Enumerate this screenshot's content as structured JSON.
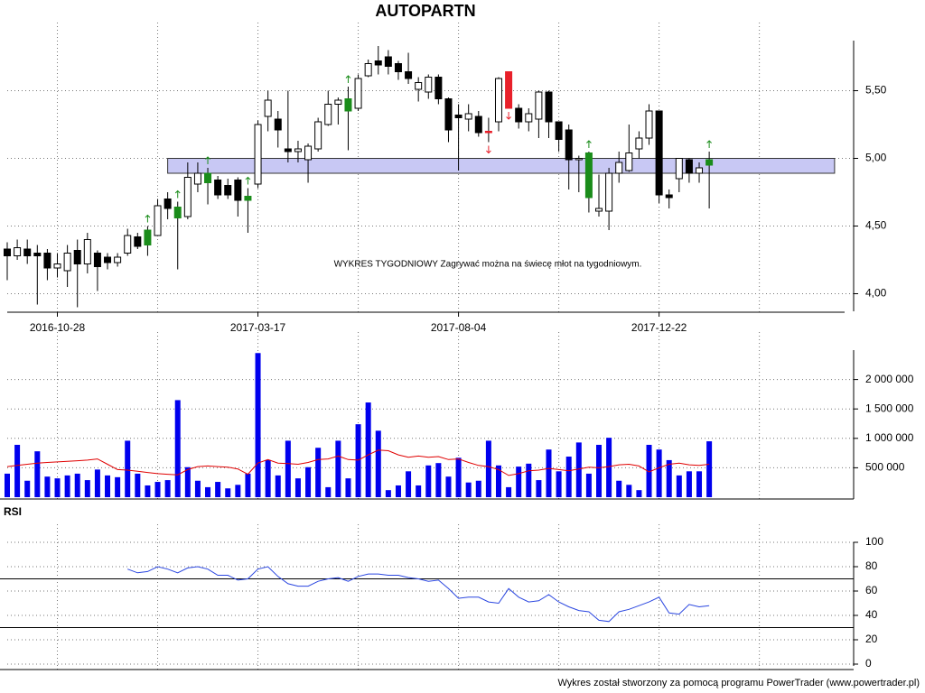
{
  "footer": "Wykres został stworzony za pomocą programu PowerTrader (www.powertrader.pl)",
  "chart_data": [
    {
      "type": "candlestick",
      "title": "AUTOPARTN",
      "annotation": "WYKRES TYGODNIOWY Zagrywać można na świecę młot na tygodniowym.",
      "categories": [
        null,
        null,
        null,
        null,
        null,
        "2016-10-28",
        null,
        null,
        null,
        null,
        null,
        null,
        null,
        null,
        null,
        null,
        null,
        null,
        null,
        null,
        null,
        null,
        null,
        null,
        null,
        "2017-03-17",
        null,
        null,
        null,
        null,
        null,
        null,
        null,
        null,
        null,
        null,
        null,
        null,
        null,
        null,
        null,
        null,
        null,
        null,
        null,
        "2017-08-04",
        null,
        null,
        null,
        null,
        null,
        null,
        null,
        null,
        null,
        null,
        null,
        null,
        null,
        null,
        null,
        null,
        null,
        null,
        null,
        "2017-12-22",
        null,
        null,
        null,
        null,
        null
      ],
      "open": [
        4.33,
        4.28,
        4.33,
        4.3,
        4.3,
        4.19,
        4.17,
        4.32,
        4.22,
        4.3,
        4.27,
        4.23,
        4.3,
        4.42,
        4.36,
        4.43,
        4.7,
        4.56,
        4.57,
        4.81,
        4.82,
        4.84,
        4.8,
        4.84,
        4.69,
        4.81,
        5.31,
        5.29,
        5.07,
        5.05,
        4.99,
        5.07,
        5.25,
        5.4,
        5.35,
        5.37,
        5.61,
        5.72,
        5.75,
        5.7,
        5.64,
        5.51,
        5.49,
        5.6,
        5.44,
        5.32,
        5.29,
        5.31,
        5.19,
        5.27,
        5.64,
        5.37,
        5.27,
        5.29,
        5.49,
        5.27,
        5.21,
        4.99,
        4.71,
        4.61,
        4.61,
        4.89,
        4.91,
        5.07,
        5.15,
        5.35,
        4.73,
        4.85,
        4.99,
        4.89,
        4.95
      ],
      "high": [
        4.38,
        4.4,
        4.4,
        4.36,
        4.33,
        4.3,
        4.36,
        4.4,
        4.45,
        4.32,
        4.3,
        4.3,
        4.48,
        4.45,
        4.5,
        4.7,
        4.75,
        4.68,
        4.97,
        4.97,
        4.93,
        4.87,
        4.85,
        4.86,
        4.78,
        5.28,
        5.5,
        5.35,
        5.5,
        5.13,
        5.11,
        5.3,
        5.5,
        5.45,
        5.53,
        5.62,
        5.73,
        5.83,
        5.8,
        5.72,
        5.78,
        5.6,
        5.62,
        5.62,
        5.45,
        5.4,
        5.4,
        5.35,
        5.3,
        5.6,
        5.64,
        5.4,
        5.37,
        5.5,
        5.5,
        5.27,
        5.25,
        5.02,
        5.05,
        4.88,
        4.93,
        5.05,
        5.25,
        5.2,
        5.4,
        5.35,
        4.77,
        5.0,
        5.0,
        4.97,
        5.05
      ],
      "low": [
        4.1,
        4.25,
        4.22,
        3.92,
        4.1,
        4.12,
        4.05,
        3.9,
        4.15,
        4.02,
        4.18,
        4.2,
        4.28,
        4.33,
        4.28,
        4.43,
        4.55,
        4.18,
        4.55,
        4.75,
        4.66,
        4.7,
        4.7,
        4.57,
        4.45,
        4.78,
        5.2,
        5.08,
        4.97,
        4.97,
        4.82,
        5.05,
        5.24,
        5.25,
        5.06,
        5.35,
        5.6,
        5.62,
        5.62,
        5.58,
        5.55,
        5.42,
        5.44,
        5.4,
        5.12,
        4.91,
        5.2,
        5.16,
        5.12,
        5.2,
        5.37,
        5.22,
        5.2,
        5.15,
        5.15,
        5.05,
        4.77,
        4.75,
        4.6,
        4.57,
        4.47,
        4.82,
        4.9,
        5.0,
        5.1,
        4.67,
        4.63,
        4.75,
        4.82,
        4.82,
        4.63
      ],
      "close": [
        4.28,
        4.34,
        4.28,
        4.28,
        4.19,
        4.22,
        4.3,
        4.22,
        4.4,
        4.2,
        4.23,
        4.27,
        4.43,
        4.35,
        4.47,
        4.65,
        4.63,
        4.64,
        4.86,
        4.89,
        4.89,
        4.73,
        4.73,
        4.69,
        4.72,
        5.25,
        5.43,
        5.21,
        5.05,
        5.07,
        5.09,
        5.27,
        5.4,
        5.43,
        5.44,
        5.59,
        5.7,
        5.69,
        5.68,
        5.64,
        5.59,
        5.56,
        5.6,
        5.44,
        5.21,
        5.3,
        5.33,
        5.19,
        5.2,
        5.59,
        5.37,
        5.27,
        5.33,
        5.49,
        5.27,
        5.14,
        4.99,
        5.0,
        5.04,
        4.63,
        4.89,
        4.97,
        5.04,
        5.15,
        5.35,
        4.73,
        4.71,
        5.0,
        4.89,
        4.93,
        4.99
      ],
      "signals": [
        null,
        null,
        null,
        null,
        null,
        null,
        null,
        null,
        null,
        null,
        null,
        null,
        null,
        null,
        "up",
        null,
        null,
        "up",
        null,
        null,
        "up",
        null,
        null,
        null,
        "up",
        null,
        null,
        null,
        null,
        null,
        null,
        null,
        null,
        null,
        "up",
        null,
        null,
        null,
        null,
        null,
        null,
        null,
        null,
        null,
        null,
        null,
        null,
        null,
        "down",
        null,
        "down",
        null,
        null,
        null,
        null,
        null,
        null,
        null,
        "up",
        null,
        null,
        null,
        null,
        null,
        null,
        null,
        null,
        null,
        null,
        null,
        "up"
      ],
      "up_color": "#ffffff",
      "down_color": "#000000",
      "signal_colors": {
        "up": "#1a8c1a",
        "down": "#e8202a"
      },
      "band": {
        "range": [
          4.89,
          5.0
        ],
        "from": 16,
        "to": 82.5,
        "color": "#c8c8f4"
      },
      "xlim": [
        0,
        83.5
      ],
      "xticks": [
        5,
        15,
        25,
        35,
        45,
        55,
        65,
        75
      ],
      "ylim": [
        3.87,
        5.87
      ],
      "yticks": [
        {
          "value": 4,
          "label": "4,00"
        },
        {
          "value": 4.5,
          "label": "4,50"
        },
        {
          "value": 5,
          "label": "5,00"
        },
        {
          "value": 5.5,
          "label": "5,50"
        }
      ],
      "grid": true
    },
    {
      "type": "bar",
      "series": [
        {
          "color": "#0000ee",
          "values": [
            400000,
            890000,
            280000,
            780000,
            350000,
            320000,
            370000,
            400000,
            290000,
            470000,
            370000,
            340000,
            960000,
            400000,
            200000,
            260000,
            290000,
            1650000,
            510000,
            280000,
            170000,
            260000,
            150000,
            210000,
            400000,
            2450000,
            630000,
            370000,
            960000,
            320000,
            510000,
            840000,
            170000,
            960000,
            320000,
            1240000,
            1610000,
            1130000,
            120000,
            200000,
            440000,
            200000,
            540000,
            580000,
            350000,
            670000,
            250000,
            280000,
            960000,
            540000,
            170000,
            520000,
            570000,
            290000,
            810000,
            440000,
            690000,
            930000,
            400000,
            890000,
            1010000,
            280000,
            210000,
            120000,
            890000,
            810000,
            630000,
            370000,
            440000,
            440000,
            950000
          ]
        },
        {
          "color": "#e00000",
          "kind": "line",
          "values": [
            520000,
            540000,
            560000,
            580000,
            590000,
            600000,
            610000,
            620000,
            630000,
            650000,
            560000,
            470000,
            460000,
            440000,
            420000,
            400000,
            390000,
            380000,
            470000,
            520000,
            530000,
            520000,
            510000,
            480000,
            390000,
            580000,
            640000,
            580000,
            570000,
            560000,
            590000,
            640000,
            650000,
            700000,
            640000,
            630000,
            720000,
            800000,
            790000,
            720000,
            680000,
            700000,
            680000,
            690000,
            640000,
            650000,
            590000,
            540000,
            520000,
            470000,
            370000,
            400000,
            450000,
            460000,
            490000,
            470000,
            450000,
            480000,
            510000,
            500000,
            520000,
            550000,
            560000,
            530000,
            430000,
            500000,
            560000,
            580000,
            550000,
            540000,
            560000
          ]
        }
      ],
      "xlim": [
        0,
        83.5
      ],
      "xticks": [
        5,
        15,
        25,
        35,
        45,
        55,
        65,
        75
      ],
      "ylim": [
        0,
        2500000
      ],
      "yticks": [
        {
          "value": 500000,
          "label": "500 000"
        },
        {
          "value": 1000000,
          "label": "1 000 000"
        },
        {
          "value": 1500000,
          "label": "1 500 000"
        },
        {
          "value": 2000000,
          "label": "2 000 000"
        }
      ],
      "grid": true
    },
    {
      "type": "line",
      "title": "RSI",
      "color": "#2a46e0",
      "values": [
        null,
        null,
        null,
        null,
        null,
        null,
        null,
        null,
        null,
        null,
        null,
        null,
        78,
        75,
        76,
        80,
        78,
        75,
        79,
        80,
        78,
        73,
        73,
        69,
        70,
        78,
        80,
        72,
        66,
        64,
        64,
        68,
        70,
        71,
        68,
        72,
        74,
        74,
        73,
        73,
        71,
        70,
        68,
        69,
        62,
        54,
        55,
        55,
        51,
        50,
        62,
        55,
        51,
        52,
        57,
        51,
        47,
        44,
        43,
        36,
        35,
        43,
        45,
        48,
        51,
        55,
        42,
        41,
        49,
        47,
        48
      ],
      "levels": [
        70,
        30
      ],
      "xlim": [
        0,
        83.5
      ],
      "xticks": [
        5,
        15,
        25,
        35,
        45,
        55,
        65,
        75
      ],
      "ylim": [
        0,
        100
      ],
      "yticks": [
        0,
        20,
        40,
        60,
        80,
        100
      ],
      "grid": true
    }
  ]
}
